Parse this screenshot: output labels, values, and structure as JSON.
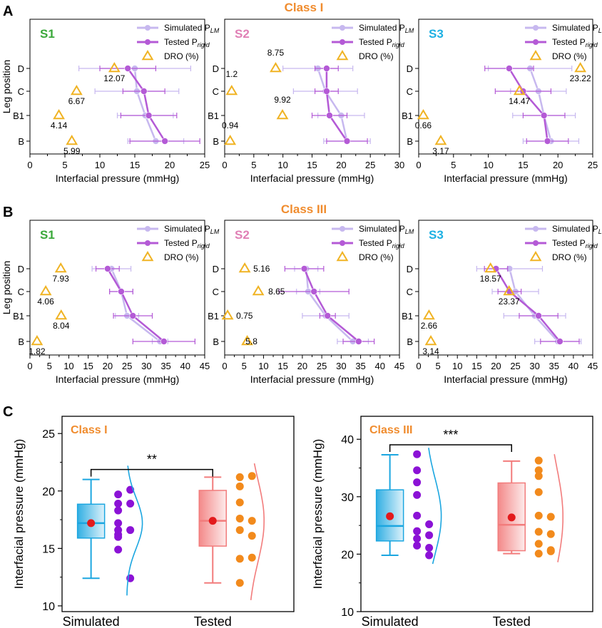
{
  "panel_letters": {
    "A": "A",
    "B": "B",
    "C": "C"
  },
  "class_titles": {
    "A": "Class I",
    "B": "Class III"
  },
  "legend": {
    "simulated": "Simulated P",
    "simulated_sub": "LM",
    "tested": "Tested P",
    "tested_sub_A": "rigid",
    "tested_sub_B": "rigid",
    "dro": "DRO (%)"
  },
  "leg_axis_label": "Leg position",
  "x_axis_label": "Interfacial pressure (mmHg)",
  "colors": {
    "simulated": "#c7b8ef",
    "tested": "#b45ad6",
    "dro": "#f0b323",
    "S1": "#3aa83a",
    "S2": "#e07fb5",
    "S3": "#1cb0e3",
    "class_title": "#f08c2e",
    "box_sim": "#1ba6e0",
    "box_test": "#f27c7c",
    "dots_sim": "#8b12d6",
    "dots_test": "#f28a1c",
    "mean": "#e31a1c"
  },
  "chart_data": [
    {
      "type": "line",
      "panel": "A",
      "subject": "S1",
      "categories": [
        "D",
        "C",
        "B1",
        "B"
      ],
      "xlim": [
        0,
        25
      ],
      "xticks": [
        0,
        5,
        10,
        15,
        20,
        25
      ],
      "simulated": {
        "mean": [
          15.0,
          15.3,
          16.5,
          18.0
        ],
        "err": [
          8.0,
          6.0,
          4.0,
          4.0
        ]
      },
      "tested": {
        "mean": [
          14.0,
          16.3,
          17.0,
          19.3
        ],
        "err": [
          4.0,
          3.0,
          4.0,
          5.0
        ]
      },
      "dro": [
        12.07,
        6.67,
        4.14,
        5.99
      ]
    },
    {
      "type": "line",
      "panel": "A",
      "subject": "S2",
      "categories": [
        "D",
        "C",
        "B1",
        "B"
      ],
      "xlim": [
        0,
        30
      ],
      "xticks": [
        0,
        5,
        10,
        15,
        20,
        25,
        30
      ],
      "simulated": {
        "mean": [
          16.0,
          17.3,
          20.0,
          21.0
        ],
        "err": [
          6.0,
          5.5,
          4.0,
          4.0
        ]
      },
      "tested": {
        "mean": [
          17.5,
          17.5,
          18.0,
          21.0
        ],
        "err": [
          2.0,
          2.0,
          3.0,
          3.5
        ]
      },
      "dro": [
        8.75,
        1.2,
        9.92,
        0.94
      ]
    },
    {
      "type": "line",
      "panel": "A",
      "subject": "S3",
      "categories": [
        "D",
        "C",
        "B1",
        "B"
      ],
      "xlim": [
        0,
        25
      ],
      "xticks": [
        0,
        5,
        10,
        15,
        20,
        25
      ],
      "simulated": {
        "mean": [
          16.0,
          17.2,
          18.0,
          19.0
        ],
        "err": [
          6.0,
          4.0,
          4.5,
          4.0
        ]
      },
      "tested": {
        "mean": [
          13.0,
          15.0,
          18.0,
          18.5
        ],
        "err": [
          3.5,
          4.0,
          3.0,
          3.0
        ]
      },
      "dro": [
        23.22,
        14.47,
        0.66,
        3.17
      ]
    },
    {
      "type": "line",
      "panel": "B",
      "subject": "S1",
      "categories": [
        "D",
        "C",
        "B1",
        "B"
      ],
      "xlim": [
        0,
        45
      ],
      "xticks": [
        0,
        5,
        10,
        15,
        20,
        25,
        30,
        35,
        40,
        45
      ],
      "simulated": {
        "mean": [
          21.0,
          23.5,
          25.0,
          33.5
        ],
        "err": [
          5.0,
          3.0,
          3.0,
          2.0
        ]
      },
      "tested": {
        "mean": [
          20.0,
          23.5,
          26.5,
          34.5
        ],
        "err": [
          3.0,
          3.0,
          5.0,
          8.0
        ]
      },
      "dro": [
        7.93,
        4.06,
        8.04,
        1.82
      ]
    },
    {
      "type": "line",
      "panel": "B",
      "subject": "S2",
      "categories": [
        "D",
        "C",
        "B1",
        "B"
      ],
      "xlim": [
        0,
        45
      ],
      "xticks": [
        0,
        5,
        10,
        15,
        20,
        25,
        30,
        35,
        40,
        45
      ],
      "simulated": {
        "mean": [
          21.0,
          21.5,
          26.0,
          33.0
        ],
        "err": [
          3.0,
          3.0,
          6.0,
          4.0
        ]
      },
      "tested": {
        "mean": [
          20.5,
          23.0,
          26.5,
          34.5
        ],
        "err": [
          5.0,
          9.0,
          2.0,
          4.0
        ]
      },
      "dro": [
        5.16,
        8.65,
        0.75,
        5.8
      ]
    },
    {
      "type": "line",
      "panel": "B",
      "subject": "S3",
      "categories": [
        "D",
        "C",
        "B1",
        "B"
      ],
      "xlim": [
        0,
        45
      ],
      "xticks": [
        0,
        5,
        10,
        15,
        20,
        25,
        30,
        35,
        40,
        45
      ],
      "simulated": {
        "mean": [
          23.5,
          25.0,
          30.0,
          36.0
        ],
        "err": [
          8.5,
          6.0,
          8.0,
          6.0
        ]
      },
      "tested": {
        "mean": [
          20.0,
          23.5,
          31.0,
          36.5
        ],
        "err": [
          3.0,
          3.0,
          5.0,
          5.0
        ]
      },
      "dro": [
        18.57,
        23.37,
        2.66,
        3.14
      ]
    },
    {
      "type": "box",
      "panel": "C",
      "title": "Class I",
      "ylabel": "Interfacial pressure (mmHg)",
      "ylim": [
        9.5,
        26.5
      ],
      "yticks": [
        10,
        15,
        20,
        25
      ],
      "categories": [
        "Simulated",
        "Tested"
      ],
      "significance": "**",
      "simulated": {
        "min": 12.4,
        "q1": 15.9,
        "median": 17.2,
        "q3": 18.85,
        "max": 21.0,
        "mean": 17.2,
        "points": [
          19.7,
          18.9,
          18.3,
          17.2,
          16.6,
          16.2,
          16.0,
          14.9,
          12.4,
          20.1,
          18.9,
          16.6
        ]
      },
      "tested": {
        "min": 12.0,
        "q1": 15.2,
        "median": 17.4,
        "q3": 20.05,
        "max": 21.2,
        "mean": 17.4,
        "points": [
          21.2,
          20.4,
          19.0,
          17.6,
          16.6,
          14.1,
          12.0,
          21.3,
          17.4,
          16.1,
          14.2
        ]
      }
    },
    {
      "type": "box",
      "panel": "C",
      "title": "Class III",
      "ylabel": "Interfacial pressure (mmHg)",
      "ylim": [
        10,
        44
      ],
      "yticks": [
        10,
        20,
        30,
        40
      ],
      "categories": [
        "Simulated",
        "Tested"
      ],
      "significance": "***",
      "simulated": {
        "min": 19.8,
        "q1": 22.3,
        "median": 24.9,
        "q3": 31.2,
        "max": 37.3,
        "mean": 26.6,
        "points": [
          37.4,
          34.6,
          32.5,
          30.3,
          26.7,
          24.0,
          22.7,
          21.5,
          19.8,
          25.2,
          23.3,
          21.1
        ]
      },
      "tested": {
        "min": 20.1,
        "q1": 20.6,
        "median": 25.1,
        "q3": 32.4,
        "max": 36.2,
        "mean": 26.4,
        "points": [
          36.3,
          33.6,
          30.8,
          26.7,
          23.9,
          21.8,
          20.1,
          34.6,
          26.5,
          23.5,
          20.5,
          20.7
        ]
      }
    }
  ]
}
